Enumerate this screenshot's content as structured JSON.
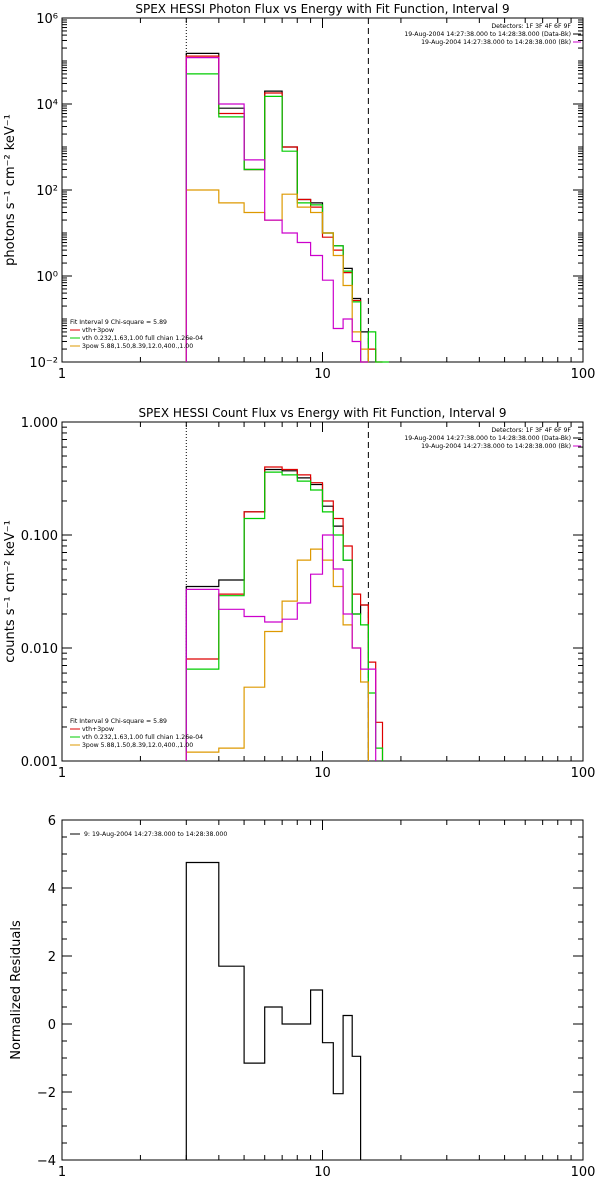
{
  "chart_data": [
    {
      "type": "line",
      "title": "SPEX HESSI Photon Flux vs Energy with Fit Function, Interval 9",
      "ylabel": "photons s⁻¹ cm⁻² keV⁻¹",
      "xlabel": "",
      "xscale": "log",
      "yscale": "log",
      "xlim": [
        1,
        100
      ],
      "ylim": [
        0.01,
        1000000
      ],
      "x_ticks": [
        "1",
        "10",
        "100"
      ],
      "y_ticks": [
        "10⁻²",
        "10⁰",
        "10²",
        "10⁴",
        "10⁶"
      ],
      "vlines": [
        {
          "x": 3,
          "style": "dotted"
        },
        {
          "x": 15,
          "style": "dashed"
        }
      ],
      "info_lines": [
        "Detectors: 1F 3F 4F 6F 9F",
        "19-Aug-2004 14:27:38.000 to 14:28:38.000 (Data-Bk)",
        "19-Aug-2004 14:27:38.000 to 14:28:38.000 (Bk)"
      ],
      "legend": {
        "header": "Fit Interval 9   Chi-square = 5.89",
        "entries": [
          "vth+3pow",
          "vth 0.232,1.63,1.00  full chian 1.26e-04",
          "3pow 5.88,1.50,8.39,12.0,400.,1.00"
        ]
      },
      "bin_edges": [
        3,
        4,
        5,
        6,
        7,
        8,
        9,
        10,
        11,
        12,
        13,
        14,
        15,
        16,
        17,
        18
      ],
      "series": [
        {
          "name": "19-Aug-2004 14:27:38.000 to 14:28:38.000 (Data-Bk)",
          "color": "#000000",
          "values": [
            150000,
            8000,
            300,
            20000,
            1000,
            60,
            50,
            10,
            5,
            1.5,
            0.3,
            0.05,
            null,
            null,
            null
          ]
        },
        {
          "name": "vth+3pow",
          "color": "#dd0000",
          "values": [
            130000,
            6000,
            300,
            18000,
            1000,
            60,
            40,
            8,
            4,
            1.2,
            0.27,
            0.01,
            0.02,
            0.005,
            null
          ]
        },
        {
          "name": "vth 0.232,1.63,1.00  full chian 1.26e-04",
          "color": "#00cc00",
          "values": [
            50000,
            5000,
            300,
            15000,
            800,
            50,
            45,
            10,
            5,
            1.3,
            0.25,
            0.01,
            0.05,
            0.01,
            0.005
          ]
        },
        {
          "name": "3pow 5.88,1.50,8.39,12.0,400.,1.00",
          "color": "#dd9900",
          "values": [
            100,
            50,
            30,
            20,
            80,
            40,
            30,
            10,
            3,
            0.6,
            0.05,
            0.02,
            null,
            null,
            null
          ]
        },
        {
          "name": "19-Aug-2004 14:27:38.000 to 14:28:38.000 (Bk)",
          "color": "#cc00cc",
          "values": [
            120000,
            10000,
            500,
            20,
            10,
            6,
            3,
            0.8,
            0.06,
            0.1,
            0.03,
            0.01,
            null,
            null,
            null
          ]
        }
      ]
    },
    {
      "type": "line",
      "title": "SPEX HESSI Count Flux vs Energy with Fit Function, Interval 9",
      "ylabel": "counts s⁻¹ cm⁻² keV⁻¹",
      "xlabel": "",
      "xscale": "log",
      "yscale": "log",
      "xlim": [
        1,
        100
      ],
      "ylim": [
        0.001,
        1
      ],
      "x_ticks": [
        "1",
        "10",
        "100"
      ],
      "y_ticks": [
        "0.001",
        "0.010",
        "0.100",
        "1.000"
      ],
      "vlines": [
        {
          "x": 3,
          "style": "dotted"
        },
        {
          "x": 15,
          "style": "dashed"
        }
      ],
      "info_lines": [
        "Detectors: 1F 3F 4F 6F 9F",
        "19-Aug-2004 14:27:38.000 to 14:28:38.000 (Data-Bk)",
        "19-Aug-2004 14:27:38.000 to 14:28:38.000 (Bk)"
      ],
      "legend": {
        "header": "Fit Interval 9   Chi-square = 5.89",
        "entries": [
          "vth+3pow",
          "vth 0.232,1.63,1.00  full chian 1.26e-04",
          "3pow 5.88,1.50,8.39,12.0,400.,1.00"
        ]
      },
      "bin_edges": [
        3,
        4,
        5,
        6,
        7,
        8,
        9,
        10,
        11,
        12,
        13,
        14,
        15,
        16,
        17,
        18
      ],
      "series": [
        {
          "name": "19-Aug-2004 14:27:38.000 to 14:28:38.000 (Data-Bk)",
          "color": "#000000",
          "values": [
            0.035,
            0.04,
            0.16,
            0.38,
            0.37,
            0.32,
            0.28,
            0.18,
            0.12,
            0.06,
            0.02,
            0.024,
            null,
            null,
            null
          ]
        },
        {
          "name": "vth+3pow",
          "color": "#dd0000",
          "values": [
            0.008,
            0.03,
            0.16,
            0.4,
            0.38,
            0.34,
            0.29,
            0.2,
            0.14,
            0.08,
            0.03,
            0.024,
            0.0075,
            0.0022,
            null
          ]
        },
        {
          "name": "vth 0.232,1.63,1.00  full chian 1.26e-04",
          "color": "#00cc00",
          "values": [
            0.0065,
            0.029,
            0.14,
            0.36,
            0.34,
            0.3,
            0.25,
            0.16,
            0.1,
            0.06,
            0.02,
            0.016,
            0.004,
            0.0013,
            null
          ]
        },
        {
          "name": "3pow 5.88,1.50,8.39,12.0,400.,1.00",
          "color": "#dd9900",
          "values": [
            0.0012,
            0.0013,
            0.0045,
            0.014,
            0.026,
            0.06,
            0.075,
            0.06,
            0.035,
            0.016,
            0.01,
            0.005,
            null,
            null,
            null
          ]
        },
        {
          "name": "19-Aug-2004 14:27:38.000 to 14:28:38.000 (Bk)",
          "color": "#cc00cc",
          "values": [
            0.033,
            0.022,
            0.019,
            0.017,
            0.018,
            0.025,
            0.045,
            0.1,
            0.05,
            0.02,
            0.01,
            0.0065,
            0.0065,
            null,
            null
          ]
        }
      ]
    },
    {
      "type": "line",
      "title": "",
      "ylabel": "Normalized Residuals",
      "xlabel": "",
      "xscale": "log",
      "yscale": "linear",
      "xlim": [
        1,
        100
      ],
      "ylim": [
        -4,
        6
      ],
      "x_ticks": [
        "1",
        "10",
        "100"
      ],
      "y_ticks": [
        "−4",
        "−2",
        "0",
        "2",
        "4",
        "6"
      ],
      "legend": {
        "entries": [
          "9: 19-Aug-2004 14:27:38.000 to 14:28:38.000"
        ]
      },
      "bin_edges": [
        3,
        4,
        5,
        6,
        7,
        8,
        9,
        10,
        11,
        12,
        13,
        14,
        15
      ],
      "series": [
        {
          "name": "9: 19-Aug-2004 14:27:38.000 to 14:28:38.000",
          "color": "#000000",
          "values": [
            4.75,
            1.7,
            -1.15,
            0.5,
            0.0,
            0.0,
            1.0,
            -0.55,
            -2.05,
            0.25,
            -0.95,
            null
          ]
        }
      ]
    }
  ]
}
